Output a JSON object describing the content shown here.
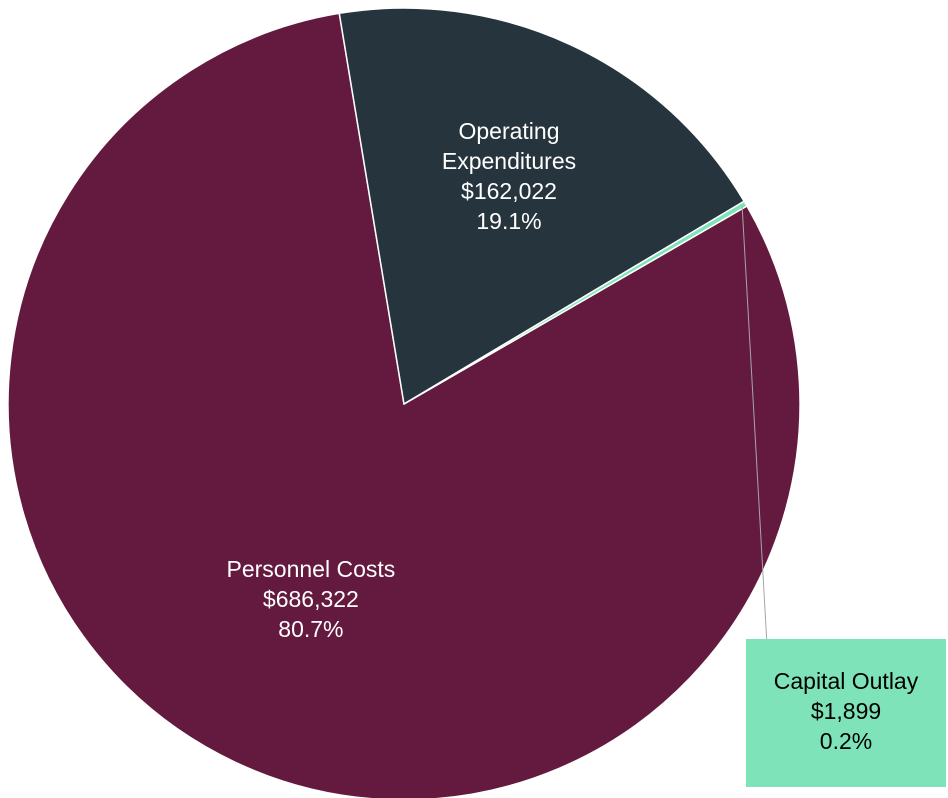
{
  "chart_data": {
    "type": "pie",
    "slices": [
      {
        "name": "Personnel Costs",
        "name_lines": [
          "Personnel Costs"
        ],
        "value": 686322,
        "value_label": "$686,322",
        "percent_label": "80.7%",
        "color": "#641a3f",
        "text_color": "#ffffff"
      },
      {
        "name": "Operating Expenditures",
        "name_lines": [
          "Operating",
          "Expenditures"
        ],
        "value": 162022,
        "value_label": "$162,022",
        "percent_label": "19.1%",
        "color": "#26343d",
        "text_color": "#ffffff"
      },
      {
        "name": "Capital Outlay",
        "name_lines": [
          "Capital Outlay"
        ],
        "value": 1899,
        "value_label": "$1,899",
        "percent_label": "0.2%",
        "color": "#7ee3b8",
        "text_color": "#000000"
      }
    ]
  }
}
